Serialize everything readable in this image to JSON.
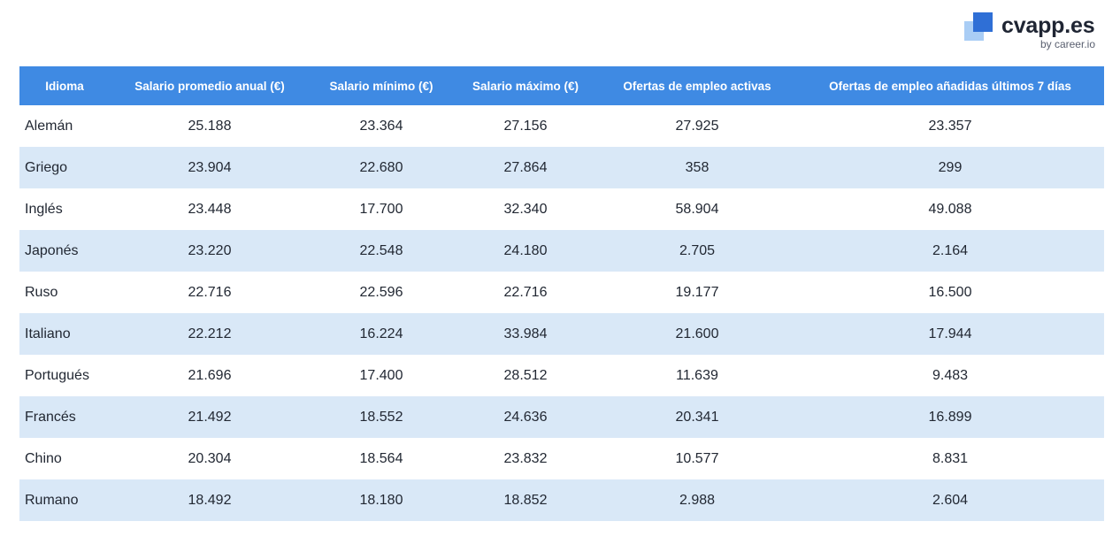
{
  "brand": {
    "name": "cvapp.es",
    "sub": "by career.io",
    "colors": {
      "mark_dark": "#2f6fd6",
      "mark_light": "#a9cdf5",
      "header_bg": "#3f8ae3",
      "alt_row_bg": "#d9e8f7"
    },
    "icon": "cvapp-logo-icon"
  },
  "table": {
    "headers": [
      "Idioma",
      "Salario promedio anual (€)",
      "Salario mínimo (€)",
      "Salario máximo (€)",
      "Ofertas de empleo activas",
      "Ofertas de empleo añadidas últimos 7 días"
    ],
    "rows": [
      [
        "Alemán",
        "25.188",
        "23.364",
        "27.156",
        "27.925",
        "23.357"
      ],
      [
        "Griego",
        "23.904",
        "22.680",
        "27.864",
        "358",
        "299"
      ],
      [
        "Inglés",
        "23.448",
        "17.700",
        "32.340",
        "58.904",
        "49.088"
      ],
      [
        "Japonés",
        "23.220",
        "22.548",
        "24.180",
        "2.705",
        "2.164"
      ],
      [
        "Ruso",
        "22.716",
        "22.596",
        "22.716",
        "19.177",
        "16.500"
      ],
      [
        "Italiano",
        "22.212",
        "16.224",
        "33.984",
        "21.600",
        "17.944"
      ],
      [
        "Portugués",
        "21.696",
        "17.400",
        "28.512",
        "11.639",
        "9.483"
      ],
      [
        "Francés",
        "21.492",
        "18.552",
        "24.636",
        "20.341",
        "16.899"
      ],
      [
        "Chino",
        "20.304",
        "18.564",
        "23.832",
        "10.577",
        "8.831"
      ],
      [
        "Rumano",
        "18.492",
        "18.180",
        "18.852",
        "2.988",
        "2.604"
      ]
    ]
  }
}
